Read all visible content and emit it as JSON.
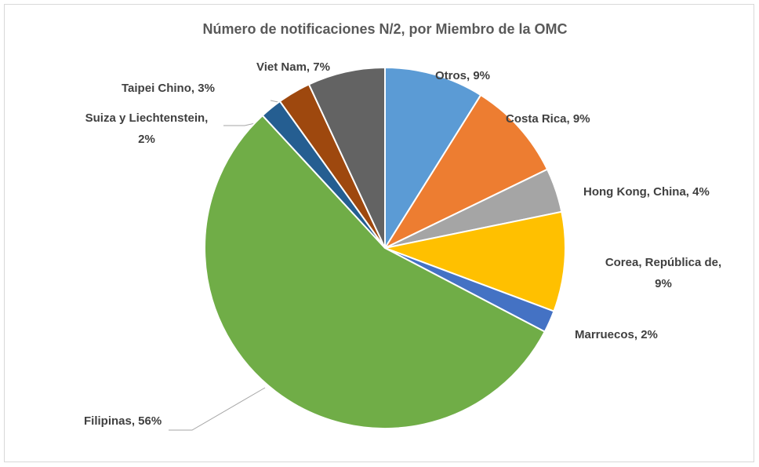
{
  "chart_data": {
    "type": "pie",
    "title": "Número de notificaciones N/2, por Miembro de la OMC",
    "values": [
      9,
      9,
      4,
      9,
      2,
      56,
      2,
      3,
      7
    ],
    "value_labels": [
      "Otros, 9%",
      "Costa Rica, 9%",
      "Hong Kong, China, 4%",
      "Corea, República de,\n9%",
      "Marruecos, 2%",
      "Filipinas, 56%",
      "Suiza y Liechtenstein,\n2%",
      "Taipei Chino, 3%",
      "Viet Nam, 7%"
    ],
    "colors": [
      "#5b9bd5",
      "#ed7d31",
      "#a5a5a5",
      "#ffc000",
      "#4472c4",
      "#70ad47",
      "#255e91",
      "#9e480e",
      "#636363"
    ]
  }
}
